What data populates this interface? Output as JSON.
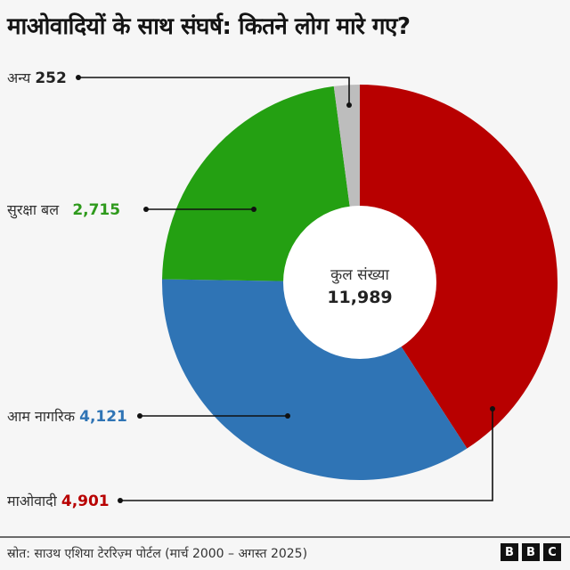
{
  "title": "माओवादियों के साथ संघर्ष: कितने लोग मारे गए?",
  "center": {
    "label": "कुल संख्या",
    "value": "11,989"
  },
  "labels": {
    "other": {
      "name": "अन्य",
      "value": "252"
    },
    "security": {
      "name": "सुरक्षा बल",
      "value": "2,715"
    },
    "civilians": {
      "name": "आम नागरिक",
      "value": "4,121"
    },
    "maoists": {
      "name": "माओवादी",
      "value": "4,901"
    }
  },
  "footer": {
    "source": "स्रोत: साउथ एशिया टेररिज़्म पोर्टल (मार्च 2000 – अगस्त 2025)",
    "logo": [
      "B",
      "B",
      "C"
    ]
  },
  "colors": {
    "maoists": "#b80000",
    "civilians": "#2f74b5",
    "security": "#24a012",
    "other": "#bdbdbd"
  },
  "chart_data": {
    "type": "pie",
    "title": "माओवादियों के साथ संघर्ष: कितने लोग मारे गए?",
    "subtitle": "",
    "donut": true,
    "center_label": "कुल संख्या",
    "total": 11989,
    "categories": [
      "माओवादी",
      "आम नागरिक",
      "सुरक्षा बल",
      "अन्य"
    ],
    "values": [
      4901,
      4121,
      2715,
      252
    ],
    "colors": [
      "#b80000",
      "#2f74b5",
      "#24a012",
      "#bdbdbd"
    ],
    "start_angle": "12 o'clock, clockwise",
    "legend": "callout labels on left",
    "source": "स्रोत: साउथ एशिया टेररिज़्म पोर्टल (मार्च 2000 – अगस्त 2025)"
  }
}
